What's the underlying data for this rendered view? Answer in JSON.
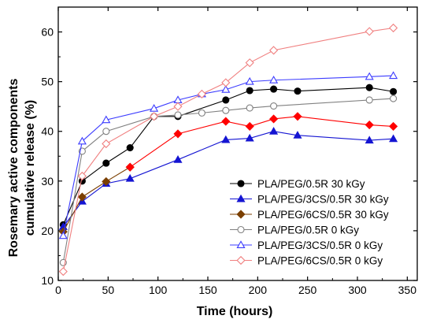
{
  "chart_data": {
    "type": "line",
    "title": "",
    "xlabel": "Time (hours)",
    "ylabel_lines": [
      "Rosemary active components",
      "cumulative release (%)"
    ],
    "xlim": [
      0,
      360
    ],
    "ylim": [
      10,
      65
    ],
    "xticks": [
      0,
      50,
      100,
      150,
      200,
      250,
      300,
      350
    ],
    "yticks": [
      10,
      20,
      30,
      40,
      50,
      60
    ],
    "grid": false,
    "legend_position": "bottom-right",
    "series": [
      {
        "name": "PLA/PEG/0.5R 30 kGy",
        "color": "#000000",
        "marker": "circle",
        "filled": true,
        "x": [
          5,
          24,
          48,
          72,
          96,
          120,
          168,
          192,
          216,
          240,
          312,
          336
        ],
        "y": [
          21.2,
          30.0,
          33.6,
          36.7,
          43.0,
          43.0,
          46.3,
          48.2,
          48.5,
          48.1,
          48.8,
          48.0
        ]
      },
      {
        "name": "PLA/PEG/3CS/0.5R 30 kGy",
        "color": "#1414d2",
        "marker": "triangle",
        "filled": true,
        "x": [
          5,
          24,
          48,
          72,
          120,
          168,
          192,
          216,
          240,
          312,
          336
        ],
        "y": [
          20.8,
          25.9,
          29.5,
          30.5,
          34.3,
          38.3,
          38.6,
          40.0,
          39.2,
          38.2,
          38.5
        ]
      },
      {
        "name": "PLA/PEG/6CS/0.5R 30 kGy",
        "color": "#7b3f00",
        "marker": "diamond",
        "filled": true,
        "x": [
          5,
          24,
          48,
          72
        ],
        "y": [
          19.8,
          26.8,
          29.9,
          32.8
        ]
      },
      {
        "name": "PLA/PEG/6CS/0.5R 30 kGy (red)",
        "legend": false,
        "color": "#ff0000",
        "marker": "diamond",
        "filled": true,
        "x": [
          72,
          120,
          168,
          192,
          216,
          240,
          312,
          336
        ],
        "y": [
          32.8,
          39.5,
          42.0,
          41.0,
          42.5,
          43.0,
          41.3,
          41.0
        ]
      },
      {
        "name": "PLA/PEG/0.5R 0 kGy",
        "color": "#808080",
        "marker": "circle",
        "filled": false,
        "x": [
          5,
          24,
          48,
          96,
          120,
          144,
          168,
          192,
          216,
          312,
          336
        ],
        "y": [
          13.6,
          36.0,
          40.0,
          43.0,
          43.3,
          43.7,
          44.2,
          44.7,
          45.1,
          46.3,
          46.6
        ]
      },
      {
        "name": "PLA/PEG/3CS/0.5R 0 kGy",
        "color": "#3c3cff",
        "marker": "triangle",
        "filled": false,
        "x": [
          5,
          24,
          48,
          96,
          120,
          144,
          168,
          192,
          216,
          312,
          336
        ],
        "y": [
          19.0,
          38.0,
          42.3,
          44.6,
          46.3,
          47.5,
          48.4,
          50.0,
          50.3,
          51.0,
          51.2
        ]
      },
      {
        "name": "PLA/PEG/6CS/0.5R 0 kGy",
        "color": "#f08080",
        "marker": "diamond",
        "filled": false,
        "x": [
          5,
          24,
          48,
          96,
          120,
          144,
          168,
          192,
          216,
          312,
          336
        ],
        "y": [
          11.8,
          31.0,
          37.5,
          43.0,
          45.0,
          47.5,
          49.8,
          53.8,
          56.3,
          60.1,
          60.8
        ]
      }
    ]
  }
}
